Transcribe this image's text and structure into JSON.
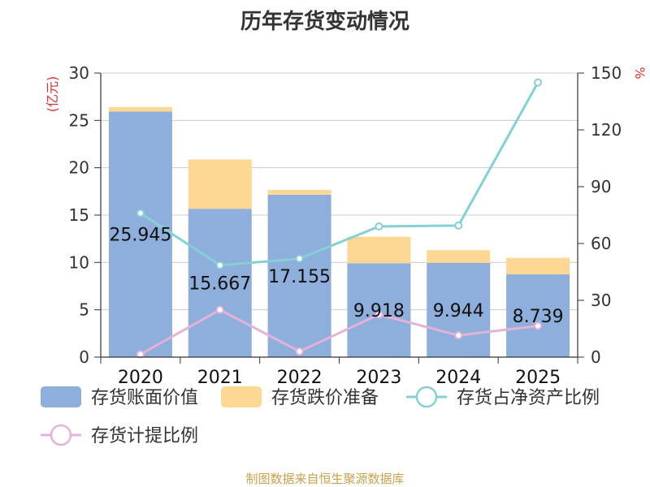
{
  "title": "历年存货变动情况",
  "source": "制图数据来自恒生聚源数据库",
  "chart_data": {
    "type": "bar",
    "title": "历年存货变动情况",
    "categories": [
      "2020",
      "2021",
      "2022",
      "2023",
      "2024",
      "2025"
    ],
    "left_axis": {
      "unit_label": "(亿元)",
      "unit_color": "#e03030",
      "ylim": [
        0,
        30
      ],
      "ticks": [
        "0",
        "5",
        "10",
        "15",
        "20",
        "25",
        "30"
      ]
    },
    "right_axis": {
      "unit_label": "%",
      "unit_color": "#e03030",
      "ylim": [
        0,
        150
      ],
      "ticks": [
        "0",
        "30",
        "60",
        "90",
        "120",
        "150"
      ]
    },
    "grid": true,
    "legend_position": "bottom",
    "series": [
      {
        "name": "存货账面价值",
        "kind": "stacked-bar",
        "axis": "left",
        "color": "#8eaedb",
        "values": [
          25.945,
          15.667,
          17.155,
          9.918,
          9.944,
          8.739
        ],
        "labels": [
          "25.945",
          "15.667",
          "17.155",
          "9.918",
          "9.944",
          "8.739"
        ]
      },
      {
        "name": "存货跌价准备",
        "kind": "stacked-bar",
        "axis": "left",
        "color": "#fdd794",
        "values": [
          0.45,
          5.2,
          0.5,
          2.8,
          1.35,
          1.75
        ]
      },
      {
        "name": "存货占净资产比例",
        "kind": "line",
        "axis": "right",
        "color": "#84d0d4",
        "values": [
          76,
          48.5,
          52,
          69,
          69.5,
          145
        ]
      },
      {
        "name": "存货计提比例",
        "kind": "line",
        "axis": "right",
        "color": "#e4b2d8",
        "values": [
          1.5,
          25,
          3,
          22.5,
          11.5,
          16.5
        ]
      }
    ]
  }
}
